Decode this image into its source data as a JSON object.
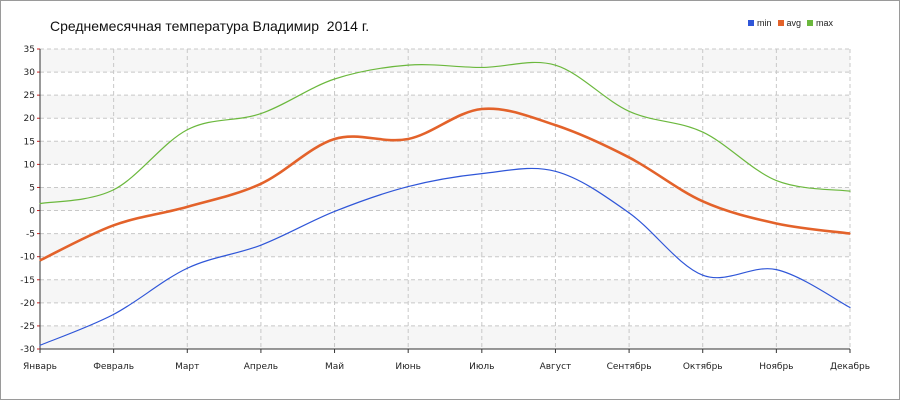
{
  "chart_data": {
    "type": "line",
    "title": "Среднемесячная температура Владимир  2014 г.",
    "xlabel": "",
    "ylabel": "",
    "categories": [
      "Январь",
      "Февраль",
      "Март",
      "Апрель",
      "Май",
      "Июнь",
      "Июль",
      "Август",
      "Сентябрь",
      "Октябрь",
      "Ноябрь",
      "Декабрь"
    ],
    "ylim": [
      -30,
      35
    ],
    "yticks": [
      -30,
      -25,
      -20,
      -15,
      -10,
      -5,
      0,
      5,
      10,
      15,
      20,
      25,
      30,
      35
    ],
    "grid": true,
    "legend_position": "top-right",
    "series": [
      {
        "name": "min",
        "color": "#2f56d8",
        "values": [
          -29.2,
          -22.5,
          -12.5,
          -7.5,
          -0.2,
          5.2,
          8.0,
          8.5,
          -0.5,
          -14.0,
          -12.8,
          -21.0
        ]
      },
      {
        "name": "avg",
        "color": "#e3622a",
        "values": [
          -10.8,
          -3.2,
          0.8,
          5.8,
          15.5,
          15.5,
          22.0,
          18.5,
          11.5,
          2.0,
          -2.8,
          -5.0
        ]
      },
      {
        "name": "max",
        "color": "#6bb83d",
        "values": [
          1.5,
          4.5,
          17.5,
          21.0,
          28.5,
          31.5,
          31.0,
          31.5,
          21.5,
          17.0,
          6.5,
          4.2
        ]
      }
    ]
  }
}
